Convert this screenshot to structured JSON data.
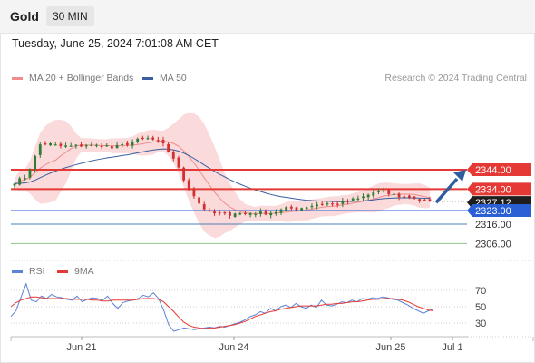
{
  "header": {
    "symbol": "Gold",
    "timeframe": "30 MIN"
  },
  "timestamp": "Tuesday, June 25, 2024 7:01:08 AM CET",
  "legend": {
    "ma20": "MA 20 + Bollinger Bands",
    "ma50": "MA 50",
    "rsi": "RSI",
    "ma9": "9MA"
  },
  "credit": "Research © 2024 Trading Central",
  "colors": {
    "up_candle": "#2e7d32",
    "down_candle": "#d32f2f",
    "bollinger_fill": "#f9d3d3",
    "ma20": "#f08c8c",
    "ma50": "#3a5f9e",
    "resistance": "#e53935",
    "support": "#2b5fd6",
    "target": "#8fbf8f",
    "arrow": "#2f5d9e",
    "rsi": "#5b83d6",
    "rsi_ma": "#e53935"
  },
  "chart_data": [
    {
      "type": "candlestick",
      "title": "Gold 30 MIN",
      "x_tick_labels": [
        "Jun 21",
        "Jun 24",
        "Jun 25",
        "Jul 1"
      ],
      "y_axis_side": "right",
      "last_price": 2327.12,
      "last_price_label": "2327.12",
      "levels": [
        {
          "value": 2344.0,
          "label": "2344.00",
          "kind": "resistance",
          "style": "tag"
        },
        {
          "value": 2334.0,
          "label": "2334.00",
          "kind": "resistance",
          "style": "tag"
        },
        {
          "value": 2323.0,
          "label": "2323.00",
          "kind": "pivot",
          "style": "tag"
        },
        {
          "value": 2316.0,
          "label": "2316.00",
          "kind": "support",
          "style": "text"
        },
        {
          "value": 2306.0,
          "label": "2306.00",
          "kind": "support",
          "style": "text"
        }
      ],
      "forecast_arrow": {
        "from": 2327.12,
        "to": 2344.0,
        "direction": "up"
      },
      "price_path": [
        2338,
        2339,
        2347,
        2358,
        2357,
        2356,
        2356,
        2356,
        2357,
        2356,
        2357,
        2355,
        2356,
        2358,
        2359,
        2360,
        2359,
        2356,
        2350,
        2340,
        2333,
        2326,
        2322,
        2321,
        2321,
        2322,
        2321,
        2322,
        2322,
        2322,
        2323,
        2324,
        2324,
        2325,
        2326,
        2327,
        2326,
        2327,
        2328,
        2329,
        2331,
        2333,
        2332,
        2331,
        2330,
        2330,
        2328,
        2327
      ],
      "series": [
        {
          "name": "MA 20 + Bollinger Bands"
        },
        {
          "name": "MA 50"
        }
      ],
      "legend_position": "top-left"
    },
    {
      "type": "line",
      "title": "RSI",
      "y_tick_labels": [
        "70",
        "50",
        "30"
      ],
      "y_ticks": [
        70,
        50,
        30
      ],
      "ylim": [
        12,
        88
      ],
      "series": [
        {
          "name": "RSI",
          "values": [
            38,
            45,
            62,
            78,
            58,
            56,
            63,
            60,
            65,
            62,
            61,
            59,
            58,
            63,
            56,
            59,
            61,
            60,
            58,
            63,
            54,
            48,
            55,
            57,
            58,
            60,
            64,
            62,
            67,
            60,
            46,
            28,
            20,
            22,
            24,
            23,
            22,
            23,
            24,
            25,
            24,
            26,
            25,
            27,
            29,
            31,
            34,
            38,
            40,
            44,
            42,
            48,
            45,
            50,
            52,
            49,
            54,
            50,
            48,
            52,
            49,
            58,
            52,
            51,
            53,
            56,
            55,
            58,
            56,
            60,
            59,
            61,
            60,
            62,
            61,
            59,
            58,
            55,
            52,
            48,
            45,
            42,
            45,
            47
          ]
        },
        {
          "name": "9MA",
          "values": [
            50,
            55,
            58,
            60,
            62,
            62,
            61,
            60,
            60,
            60,
            60,
            60,
            59,
            59,
            59,
            59,
            58,
            58,
            57,
            57,
            58,
            58,
            58,
            58,
            58,
            59,
            60,
            60,
            60,
            59,
            56,
            50,
            44,
            37,
            31,
            27,
            25,
            24,
            23,
            24,
            24,
            25,
            26,
            27,
            28,
            30,
            32,
            35,
            38,
            40,
            42,
            44,
            45,
            47,
            48,
            49,
            50,
            51,
            51,
            51,
            51,
            52,
            53,
            53,
            54,
            54,
            55,
            56,
            56,
            57,
            58,
            59,
            59,
            60,
            60,
            60,
            59,
            58,
            56,
            53,
            50,
            48,
            46,
            45
          ]
        }
      ],
      "legend_position": "top-left"
    }
  ]
}
